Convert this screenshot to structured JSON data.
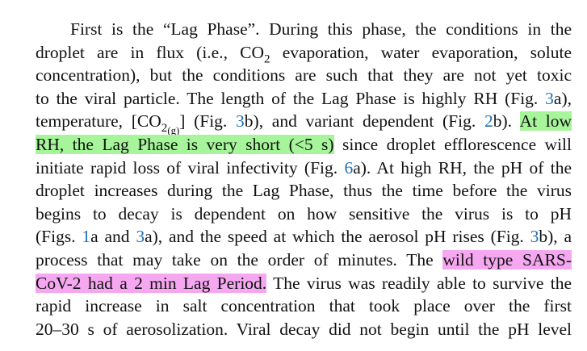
{
  "paragraph": {
    "l1": "First is the “Lag Phase”. During this phase, the conditions in the",
    "l2a": "droplet are in flux (i.e., CO",
    "l2sub": "2",
    "l2b": " evaporation, water evaporation, solute",
    "l3": "concentration), but the conditions are such that they are not yet toxic",
    "l4a": "to the viral particle. The length of the Lag Phase is highly RH (Fig. ",
    "l4ref": "3",
    "l4b": "a),",
    "l5a": "temperature, [CO",
    "l5sub": "2",
    "l5subsub": "(g)",
    "l5b": "] (Fig. ",
    "l5ref1": "3",
    "l5c": "b), and variant dependent (Fig. ",
    "l5ref2": "2",
    "l5d": "b). ",
    "l5hl": "At low",
    "l6hl": "RH, the Lag Phase is very short (<5 s)",
    "l6b": " since droplet efflorescence will",
    "l7a": "initiate rapid loss of viral infectivity (Fig. ",
    "l7ref": "6",
    "l7b": "a). At high RH, the pH of the",
    "l8": "droplet increases during the Lag Phase, thus the time before the virus",
    "l9": "begins to decay is dependent on how sensitive the virus is to pH",
    "l10a": "(Figs. ",
    "l10ref1": "1",
    "l10b": "a and ",
    "l10ref2": "3",
    "l10c": "a), and the speed at which the aerosol pH rises (Fig. ",
    "l10ref3": "3",
    "l10d": "b), a",
    "l11a": "process that may take on the order of minutes. The ",
    "l11hl": "wild type SARS-",
    "l12hl": "CoV-2 had a 2 min Lag Period.",
    "l12b": " The virus was readily able to survive the",
    "l13": "rapid increase in salt concentration that took place over the first",
    "l14": "20–30 s of aerosolization. Viral decay did not begin until the pH level"
  },
  "colors": {
    "text": "#111111",
    "link": "#1f6fb2",
    "highlight_green": "#a6f59a",
    "highlight_pink": "#f5a8f0"
  }
}
